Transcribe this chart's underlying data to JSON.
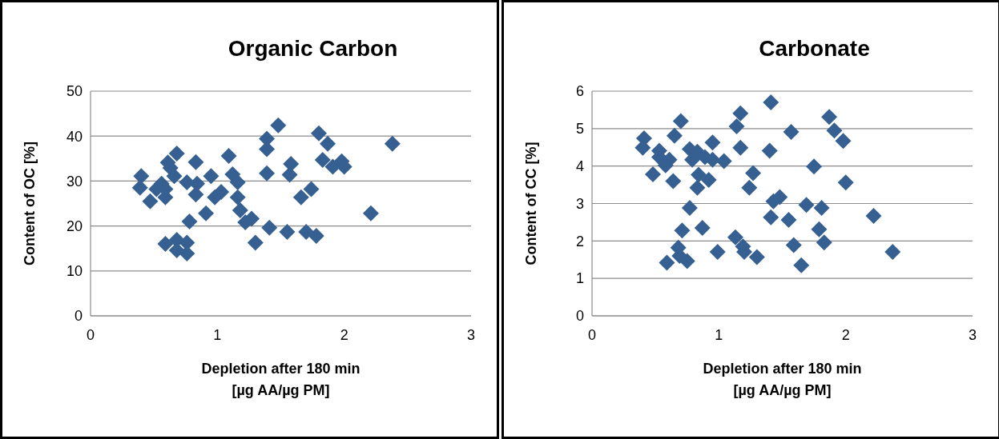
{
  "chart_data": [
    {
      "type": "scatter",
      "title": "Organic Carbon",
      "xlabel": "Depletion after 180 min\n[µg AA/µg PM]",
      "ylabel": "Content of OC [%]",
      "xlim": [
        0,
        3
      ],
      "xticks": [
        0,
        1,
        2,
        3
      ],
      "ylim": [
        0,
        50
      ],
      "yticks": [
        0,
        10,
        20,
        30,
        40,
        50
      ],
      "grid": "y",
      "marker": "diamond",
      "series": [
        {
          "color": "#376092",
          "x": [
            0.4,
            0.39,
            0.47,
            0.61,
            0.68,
            0.66,
            0.59,
            0.59,
            0.52,
            0.76,
            0.83,
            0.83,
            0.84,
            0.95,
            0.98,
            1.03,
            0.91,
            0.78,
            1.09,
            1.12,
            1.16,
            1.16,
            1.18,
            0.59,
            0.68,
            0.76,
            0.76,
            0.68,
            0.63,
            0.56,
            1.48,
            1.39,
            1.39,
            1.39,
            1.58,
            1.57,
            1.8,
            1.87,
            1.83,
            1.91,
            1.98,
            2.0,
            2.38,
            2.21,
            1.74,
            1.66,
            1.27,
            1.22,
            1.41,
            1.55,
            1.7,
            1.78,
            1.3
          ],
          "values": [
            31.1,
            28.5,
            25.5,
            34.1,
            36.1,
            31.1,
            26.4,
            28.2,
            28.2,
            29.7,
            34.2,
            27.0,
            29.4,
            31.1,
            26.4,
            27.6,
            22.8,
            21.0,
            35.6,
            31.5,
            29.7,
            26.4,
            23.5,
            16.0,
            16.9,
            16.3,
            13.9,
            14.6,
            32.9,
            29.4,
            42.4,
            39.4,
            37.1,
            31.7,
            33.8,
            31.4,
            40.6,
            38.3,
            34.7,
            33.2,
            34.4,
            33.2,
            38.3,
            22.8,
            28.2,
            26.4,
            21.6,
            20.8,
            19.6,
            18.7,
            18.7,
            17.8,
            16.3
          ]
        }
      ]
    },
    {
      "type": "scatter",
      "title": "Carbonate",
      "xlabel": "Depletion after 180 min\n[µg AA/µg PM]",
      "ylabel": "Content of CC [%]",
      "xlim": [
        0,
        3
      ],
      "xticks": [
        0,
        1,
        2,
        3
      ],
      "ylim": [
        0,
        6
      ],
      "yticks": [
        0,
        1,
        2,
        3,
        4,
        5,
        6
      ],
      "grid": "y",
      "marker": "diamond",
      "series": [
        {
          "color": "#376092",
          "x": [
            0.41,
            0.4,
            0.48,
            0.64,
            0.7,
            0.65,
            0.53,
            0.53,
            0.61,
            0.58,
            0.77,
            0.79,
            0.83,
            0.95,
            0.95,
            1.04,
            0.89,
            0.84,
            0.92,
            0.83,
            0.77,
            0.71,
            0.87,
            0.68,
            0.59,
            0.75,
            0.69,
            0.99,
            1.17,
            1.14,
            1.17,
            1.13,
            1.41,
            1.87,
            1.91,
            1.98,
            1.57,
            1.4,
            1.75,
            1.27,
            1.24,
            2.0,
            1.48,
            1.43,
            1.69,
            1.81,
            1.41,
            1.55,
            2.22,
            1.79,
            1.83,
            1.59,
            1.19,
            1.2,
            1.3,
            1.65,
            2.37
          ],
          "values": [
            4.74,
            4.49,
            3.78,
            3.6,
            5.2,
            4.81,
            4.41,
            4.24,
            4.17,
            4.02,
            4.45,
            4.17,
            4.38,
            4.63,
            4.17,
            4.13,
            4.24,
            3.77,
            3.63,
            3.42,
            2.88,
            2.28,
            2.35,
            1.82,
            1.42,
            1.46,
            1.6,
            1.71,
            4.49,
            5.06,
            5.41,
            2.1,
            5.7,
            5.31,
            4.95,
            4.67,
            4.91,
            4.41,
            3.99,
            3.81,
            3.42,
            3.56,
            3.17,
            3.06,
            2.96,
            2.88,
            2.63,
            2.56,
            2.67,
            2.31,
            1.96,
            1.89,
            1.85,
            1.71,
            1.57,
            1.35,
            1.71
          ]
        }
      ]
    }
  ]
}
